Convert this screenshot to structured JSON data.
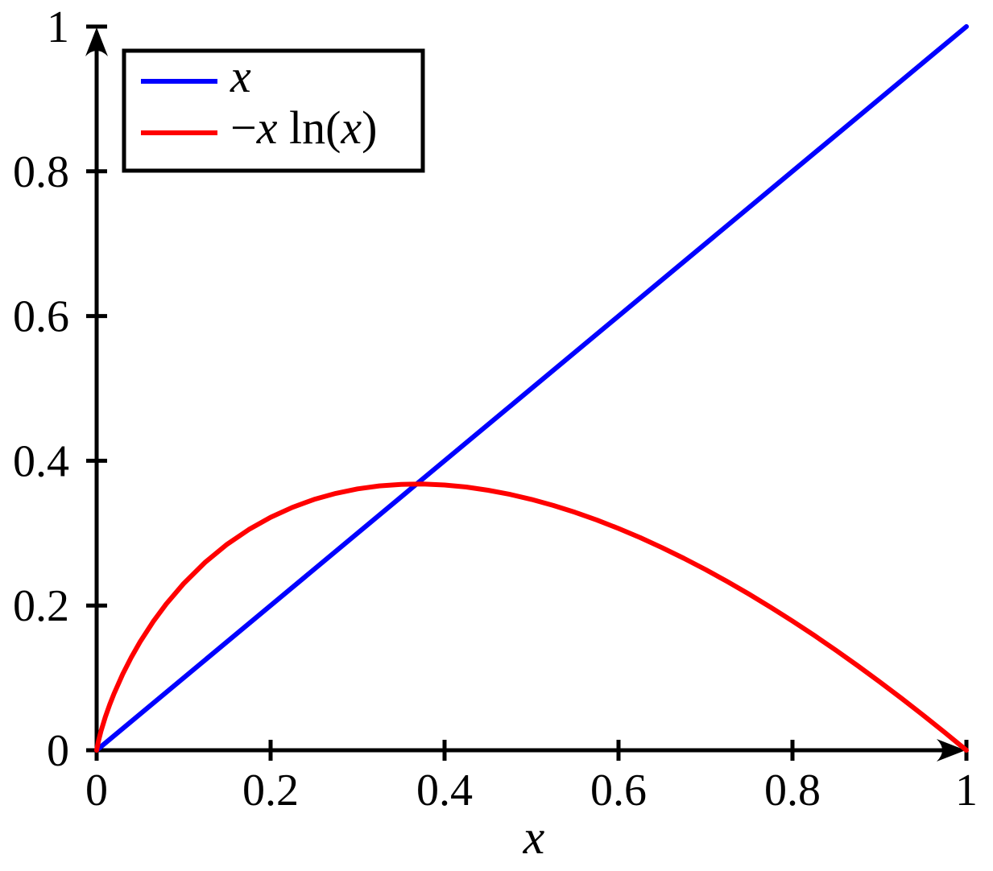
{
  "figure": {
    "background": "#ffffff",
    "axis_color": "#000000"
  },
  "legend": {
    "entries": [
      {
        "id": "x",
        "label": "x",
        "color": "#0000ff",
        "parts": [
          {
            "t": "x",
            "it": true
          }
        ]
      },
      {
        "id": "neg-x-ln-x",
        "label": "−x ln(x)",
        "color": "#ff0000",
        "parts": [
          {
            "t": "−",
            "it": false
          },
          {
            "t": "x",
            "it": true
          },
          {
            "t": " ln(",
            "it": false
          },
          {
            "t": "x",
            "it": true
          },
          {
            "t": ")",
            "it": false
          }
        ]
      }
    ]
  },
  "chart_data": {
    "type": "line",
    "title": "",
    "xlabel": "x",
    "ylabel": "",
    "xlim": [
      0,
      1
    ],
    "ylim": [
      0,
      1
    ],
    "grid": false,
    "legend_position": "top-left",
    "x_ticks": [
      0,
      0.2,
      0.4,
      0.6,
      0.8,
      1
    ],
    "x_tick_labels": [
      "0",
      "0.2",
      "0.4",
      "0.6",
      "0.8",
      "1"
    ],
    "y_ticks": [
      0,
      0.2,
      0.4,
      0.6,
      0.8,
      1
    ],
    "y_tick_labels": [
      "0",
      "0.2",
      "0.4",
      "0.6",
      "0.8",
      "1"
    ],
    "series": [
      {
        "id": "x",
        "name": "x",
        "color": "#0000ff",
        "points": [
          [
            0,
            0
          ],
          [
            1,
            1
          ]
        ]
      },
      {
        "id": "neg-x-ln-x",
        "name": "−x ln(x)",
        "color": "#ff0000",
        "points": [
          [
            0,
            0
          ],
          [
            0.002,
            0.0124
          ],
          [
            0.005,
            0.0265
          ],
          [
            0.01,
            0.0461
          ],
          [
            0.015,
            0.063
          ],
          [
            0.02,
            0.0782
          ],
          [
            0.03,
            0.1052
          ],
          [
            0.04,
            0.1288
          ],
          [
            0.05,
            0.1498
          ],
          [
            0.065,
            0.1777
          ],
          [
            0.08,
            0.2021
          ],
          [
            0.1,
            0.2303
          ],
          [
            0.125,
            0.2599
          ],
          [
            0.15,
            0.2846
          ],
          [
            0.175,
            0.305
          ],
          [
            0.2,
            0.3219
          ],
          [
            0.225,
            0.3356
          ],
          [
            0.25,
            0.3466
          ],
          [
            0.275,
            0.355
          ],
          [
            0.3,
            0.3612
          ],
          [
            0.325,
            0.3653
          ],
          [
            0.35,
            0.3674
          ],
          [
            0.375,
            0.3678
          ],
          [
            0.4,
            0.3665
          ],
          [
            0.425,
            0.3637
          ],
          [
            0.45,
            0.3593
          ],
          [
            0.475,
            0.3536
          ],
          [
            0.5,
            0.3466
          ],
          [
            0.525,
            0.3383
          ],
          [
            0.55,
            0.3288
          ],
          [
            0.575,
            0.3182
          ],
          [
            0.6,
            0.3065
          ],
          [
            0.625,
            0.2938
          ],
          [
            0.65,
            0.28
          ],
          [
            0.675,
            0.2653
          ],
          [
            0.7,
            0.2497
          ],
          [
            0.725,
            0.2332
          ],
          [
            0.75,
            0.2158
          ],
          [
            0.775,
            0.1975
          ],
          [
            0.8,
            0.1785
          ],
          [
            0.825,
            0.1587
          ],
          [
            0.85,
            0.1381
          ],
          [
            0.875,
            0.1168
          ],
          [
            0.9,
            0.0948
          ],
          [
            0.925,
            0.0721
          ],
          [
            0.95,
            0.0487
          ],
          [
            0.975,
            0.0247
          ],
          [
            1,
            0
          ]
        ]
      }
    ]
  }
}
